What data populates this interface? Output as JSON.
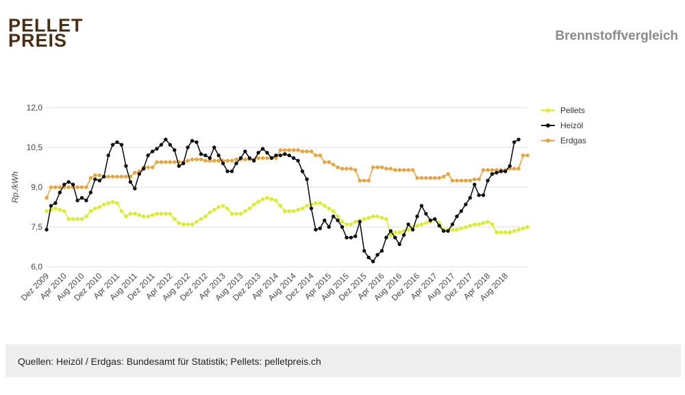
{
  "header": {
    "logo_line1": "PELLET",
    "logo_line2": "PREIS",
    "title": "Brennstoffvergleich"
  },
  "footer": {
    "source": "Quellen: Heizöl / Erdgas: Bundesamt für Statistik; Pellets: pelletpreis.ch"
  },
  "colors": {
    "pellets": "#d9ee2a",
    "heizoel": "#111111",
    "erdgas": "#e8a33c",
    "grid": "#dddddd"
  },
  "chart_data": {
    "type": "line",
    "title": "",
    "xlabel": "",
    "ylabel": "Rp./kWh",
    "ylim": [
      6.0,
      12.0
    ],
    "yticks": [
      "12,0",
      "10,5",
      "9,0",
      "7,5",
      "6,0"
    ],
    "ytick_values": [
      12.0,
      10.5,
      9.0,
      7.5,
      6.0
    ],
    "x_start": "Dez 2009",
    "x_end": "Dez 2018",
    "xticks": [
      "Dez 2009",
      "Apr 2010",
      "Aug 2010",
      "Dez 2010",
      "Apr 2011",
      "Aug 2011",
      "Dez 2011",
      "Apr 2012",
      "Aug 2012",
      "Dez 2012",
      "Apr 2013",
      "Aug 2013",
      "Dez 2013",
      "Apr 2014",
      "Aug 2014",
      "Dez 2014",
      "Apr 2015",
      "Aug 2015",
      "Dez 2015",
      "Apr 2016",
      "Aug 2016",
      "Dez 2016",
      "Apr 2017",
      "Aug 2017",
      "Dez 2017",
      "Apr 2018",
      "Aug 2018"
    ],
    "legend_position": "right",
    "grid": true,
    "series": [
      {
        "name": "Pellets",
        "values": [
          8.1,
          8.15,
          8.2,
          8.15,
          8.1,
          7.8,
          7.8,
          7.8,
          7.8,
          7.9,
          8.1,
          8.2,
          8.25,
          8.35,
          8.4,
          8.45,
          8.4,
          8.1,
          7.9,
          8.0,
          8.0,
          7.95,
          7.9,
          7.9,
          7.95,
          8.0,
          8.0,
          8.0,
          8.0,
          7.8,
          7.65,
          7.6,
          7.6,
          7.6,
          7.7,
          7.8,
          7.9,
          8.05,
          8.15,
          8.25,
          8.3,
          8.2,
          8.0,
          8.0,
          8.0,
          8.1,
          8.2,
          8.35,
          8.45,
          8.55,
          8.6,
          8.55,
          8.5,
          8.3,
          8.1,
          8.1,
          8.1,
          8.15,
          8.2,
          8.3,
          8.35,
          8.4,
          8.4,
          8.3,
          8.2,
          8.1,
          7.9,
          7.7,
          7.6,
          7.6,
          7.7,
          7.75,
          7.8,
          7.85,
          7.9,
          7.9,
          7.85,
          7.8,
          7.2,
          7.3,
          7.3,
          7.35,
          7.4,
          7.5,
          7.55,
          7.6,
          7.65,
          7.7,
          7.8,
          7.65,
          7.4,
          7.4,
          7.4,
          7.4,
          7.45,
          7.5,
          7.55,
          7.6,
          7.6,
          7.65,
          7.7,
          7.6,
          7.3,
          7.3,
          7.3,
          7.3,
          7.35,
          7.4,
          7.45,
          7.5
        ]
      },
      {
        "name": "Heizöl",
        "values": [
          7.4,
          8.3,
          8.4,
          8.8,
          9.1,
          9.2,
          9.1,
          8.5,
          8.6,
          8.5,
          8.8,
          9.3,
          9.25,
          9.4,
          10.2,
          10.6,
          10.7,
          10.6,
          9.8,
          9.2,
          8.95,
          9.5,
          9.7,
          10.2,
          10.35,
          10.45,
          10.6,
          10.8,
          10.6,
          10.4,
          9.8,
          9.9,
          10.5,
          10.75,
          10.7,
          10.25,
          10.2,
          10.1,
          10.5,
          10.2,
          9.9,
          9.6,
          9.6,
          9.9,
          10.1,
          10.35,
          10.1,
          10.0,
          10.3,
          10.45,
          10.3,
          10.1,
          10.2,
          10.2,
          10.25,
          10.2,
          10.1,
          10.0,
          9.6,
          9.3,
          8.2,
          7.4,
          7.45,
          7.75,
          7.5,
          7.9,
          7.75,
          7.5,
          7.1,
          7.1,
          7.15,
          7.7,
          6.6,
          6.35,
          6.2,
          6.45,
          6.6,
          7.1,
          7.35,
          7.1,
          6.85,
          7.2,
          7.6,
          7.4,
          7.9,
          8.3,
          8.0,
          7.75,
          7.8,
          7.55,
          7.35,
          7.35,
          7.6,
          7.9,
          8.1,
          8.35,
          8.6,
          9.1,
          8.7,
          8.7,
          9.25,
          9.5,
          9.55,
          9.6,
          9.6,
          9.8,
          10.7,
          10.8
        ]
      },
      {
        "name": "Erdgas",
        "values": [
          8.6,
          9.0,
          9.0,
          9.0,
          9.0,
          9.0,
          9.0,
          9.0,
          9.0,
          9.0,
          9.35,
          9.45,
          9.45,
          9.4,
          9.4,
          9.4,
          9.4,
          9.4,
          9.4,
          9.4,
          9.55,
          9.6,
          9.75,
          9.75,
          9.75,
          9.95,
          9.95,
          9.95,
          9.95,
          9.95,
          9.95,
          9.95,
          10.0,
          10.05,
          10.05,
          10.05,
          10.0,
          10.0,
          10.0,
          10.0,
          10.0,
          10.0,
          10.0,
          10.05,
          10.05,
          10.05,
          10.05,
          10.05,
          10.1,
          10.1,
          10.1,
          10.1,
          10.1,
          10.4,
          10.4,
          10.4,
          10.4,
          10.4,
          10.35,
          10.35,
          10.35,
          10.2,
          10.2,
          9.95,
          9.95,
          9.85,
          9.75,
          9.7,
          9.7,
          9.7,
          9.65,
          9.25,
          9.25,
          9.25,
          9.75,
          9.75,
          9.75,
          9.7,
          9.7,
          9.65,
          9.65,
          9.65,
          9.65,
          9.65,
          9.35,
          9.35,
          9.35,
          9.35,
          9.35,
          9.35,
          9.4,
          9.5,
          9.25,
          9.25,
          9.25,
          9.25,
          9.25,
          9.3,
          9.3,
          9.65,
          9.65,
          9.65,
          9.65,
          9.65,
          9.65,
          9.7,
          9.7,
          9.7,
          10.2,
          10.2
        ]
      }
    ]
  }
}
